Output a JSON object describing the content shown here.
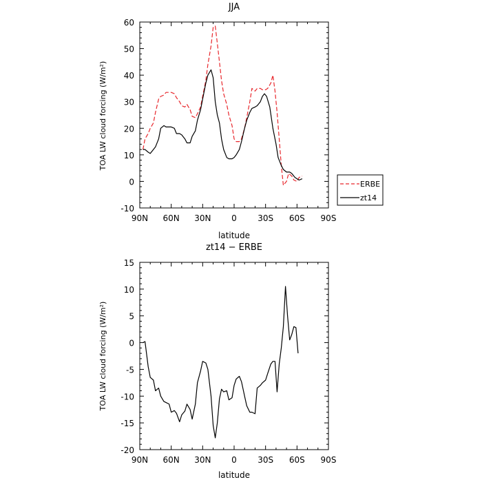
{
  "chart_data": [
    {
      "type": "line",
      "title": "JJA",
      "xlabel": "latitude",
      "ylabel": "TOA LW cloud forcing (W/m²)",
      "xlim": [
        90,
        -90
      ],
      "ylim": [
        -10,
        60
      ],
      "xticks": [
        {
          "v": 90,
          "label": "90N"
        },
        {
          "v": 60,
          "label": "60N"
        },
        {
          "v": 30,
          "label": "30N"
        },
        {
          "v": 0,
          "label": "0"
        },
        {
          "v": -30,
          "label": "30S"
        },
        {
          "v": -60,
          "label": "60S"
        },
        {
          "v": -90,
          "label": "90S"
        }
      ],
      "yticks": [
        -10,
        0,
        10,
        20,
        30,
        40,
        50,
        60
      ],
      "legend": "right",
      "series": [
        {
          "name": "ERBE",
          "color": "#e8262b",
          "dash": true,
          "points": [
            [
              87,
              12
            ],
            [
              85,
              16
            ],
            [
              82,
              18
            ],
            [
              80,
              20
            ],
            [
              77,
              22
            ],
            [
              75,
              26
            ],
            [
              72,
              31
            ],
            [
              70,
              32
            ],
            [
              67,
              32.5
            ],
            [
              65,
              33.5
            ],
            [
              62,
              33.5
            ],
            [
              60,
              33.5
            ],
            [
              57,
              33
            ],
            [
              55,
              31.5
            ],
            [
              52,
              30
            ],
            [
              50,
              28.5
            ],
            [
              47,
              28
            ],
            [
              45,
              29
            ],
            [
              42,
              27
            ],
            [
              40,
              24.5
            ],
            [
              37,
              24
            ],
            [
              35,
              25.5
            ],
            [
              32,
              28
            ],
            [
              30,
              32
            ],
            [
              27,
              38
            ],
            [
              25,
              44
            ],
            [
              22,
              51
            ],
            [
              20,
              58
            ],
            [
              18,
              58.5
            ],
            [
              16,
              52
            ],
            [
              14,
              45
            ],
            [
              12,
              38
            ],
            [
              10,
              33
            ],
            [
              7,
              29
            ],
            [
              5,
              25
            ],
            [
              2,
              21
            ],
            [
              0,
              16
            ],
            [
              -2,
              15
            ],
            [
              -5,
              15
            ],
            [
              -7,
              16
            ],
            [
              -10,
              20
            ],
            [
              -12,
              24
            ],
            [
              -15,
              30
            ],
            [
              -17,
              35
            ],
            [
              -20,
              34
            ],
            [
              -22,
              35
            ],
            [
              -25,
              35
            ],
            [
              -27,
              34.5
            ],
            [
              -30,
              34.5
            ],
            [
              -32,
              35
            ],
            [
              -35,
              37
            ],
            [
              -37,
              40
            ],
            [
              -39,
              34
            ],
            [
              -41,
              26
            ],
            [
              -43,
              16
            ],
            [
              -45,
              6
            ],
            [
              -47,
              -1.5
            ],
            [
              -50,
              0
            ],
            [
              -52,
              3
            ],
            [
              -55,
              2
            ],
            [
              -57,
              0.5
            ],
            [
              -60,
              0
            ],
            [
              -62,
              1.5
            ],
            [
              -65,
              2
            ]
          ]
        },
        {
          "name": "zt14",
          "color": "#000000",
          "dash": false,
          "points": [
            [
              87,
              12
            ],
            [
              85,
              12
            ],
            [
              82,
              11
            ],
            [
              80,
              10.5
            ],
            [
              77,
              12
            ],
            [
              75,
              13
            ],
            [
              72,
              16
            ],
            [
              70,
              20
            ],
            [
              67,
              21
            ],
            [
              65,
              20.5
            ],
            [
              62,
              20.5
            ],
            [
              60,
              20.5
            ],
            [
              57,
              20
            ],
            [
              55,
              18
            ],
            [
              52,
              18
            ],
            [
              50,
              17.5
            ],
            [
              47,
              16
            ],
            [
              45,
              14.5
            ],
            [
              42,
              14.5
            ],
            [
              40,
              17
            ],
            [
              37,
              19
            ],
            [
              35,
              23
            ],
            [
              32,
              27
            ],
            [
              30,
              31
            ],
            [
              27,
              37
            ],
            [
              25,
              40
            ],
            [
              22,
              42
            ],
            [
              20,
              39
            ],
            [
              18,
              30
            ],
            [
              16,
              25
            ],
            [
              14,
              22
            ],
            [
              12,
              16
            ],
            [
              10,
              12
            ],
            [
              7,
              9
            ],
            [
              5,
              8.5
            ],
            [
              2,
              8.5
            ],
            [
              0,
              9
            ],
            [
              -2,
              10
            ],
            [
              -5,
              12
            ],
            [
              -7,
              15
            ],
            [
              -10,
              20
            ],
            [
              -12,
              23
            ],
            [
              -15,
              26
            ],
            [
              -17,
              27.5
            ],
            [
              -20,
              28
            ],
            [
              -22,
              28.5
            ],
            [
              -25,
              30
            ],
            [
              -27,
              32
            ],
            [
              -29,
              33
            ],
            [
              -31,
              32
            ],
            [
              -34,
              28
            ],
            [
              -37,
              20
            ],
            [
              -40,
              14
            ],
            [
              -42,
              9
            ],
            [
              -45,
              6
            ],
            [
              -47,
              4.5
            ],
            [
              -50,
              3.5
            ],
            [
              -53,
              3.5
            ],
            [
              -55,
              3
            ],
            [
              -58,
              1.5
            ],
            [
              -60,
              1
            ],
            [
              -62,
              0.5
            ],
            [
              -65,
              1
            ]
          ]
        }
      ]
    },
    {
      "type": "line",
      "title": "zt14 − ERBE",
      "xlabel": "latitude",
      "ylabel": "TOA LW cloud forcing (W/m²)",
      "xlim": [
        90,
        -90
      ],
      "ylim": [
        -20,
        15
      ],
      "xticks": [
        {
          "v": 90,
          "label": "90N"
        },
        {
          "v": 60,
          "label": "60N"
        },
        {
          "v": 30,
          "label": "30N"
        },
        {
          "v": 0,
          "label": "0"
        },
        {
          "v": -30,
          "label": "30S"
        },
        {
          "v": -60,
          "label": "60S"
        },
        {
          "v": -90,
          "label": "90S"
        }
      ],
      "yticks": [
        -20,
        -15,
        -10,
        -5,
        0,
        5,
        10,
        15
      ],
      "series": [
        {
          "color": "#000000",
          "dash": false,
          "points": [
            [
              87,
              0
            ],
            [
              85,
              0.2
            ],
            [
              82,
              -4.5
            ],
            [
              80,
              -6.5
            ],
            [
              77,
              -7
            ],
            [
              75,
              -9
            ],
            [
              72,
              -8.5
            ],
            [
              70,
              -10
            ],
            [
              67,
              -11
            ],
            [
              65,
              -11.2
            ],
            [
              62,
              -11.5
            ],
            [
              60,
              -13
            ],
            [
              57,
              -12.7
            ],
            [
              55,
              -13.2
            ],
            [
              52,
              -14.8
            ],
            [
              50,
              -13.5
            ],
            [
              47,
              -12.8
            ],
            [
              45,
              -11.5
            ],
            [
              42,
              -12.5
            ],
            [
              40,
              -14.3
            ],
            [
              37,
              -11.5
            ],
            [
              35,
              -7.5
            ],
            [
              32,
              -5.3
            ],
            [
              30,
              -3.5
            ],
            [
              27,
              -3.8
            ],
            [
              25,
              -5
            ],
            [
              22,
              -10
            ],
            [
              20,
              -15.5
            ],
            [
              18,
              -17.8
            ],
            [
              16,
              -15
            ],
            [
              14,
              -10.5
            ],
            [
              12,
              -8.7
            ],
            [
              10,
              -9.2
            ],
            [
              7,
              -9
            ],
            [
              5,
              -10.7
            ],
            [
              2,
              -10.3
            ],
            [
              0,
              -8
            ],
            [
              -2,
              -6.8
            ],
            [
              -5,
              -6.3
            ],
            [
              -7,
              -7.3
            ],
            [
              -10,
              -10
            ],
            [
              -12,
              -11.8
            ],
            [
              -15,
              -13
            ],
            [
              -17,
              -13
            ],
            [
              -20,
              -13.3
            ],
            [
              -22,
              -8.5
            ],
            [
              -25,
              -8
            ],
            [
              -27,
              -7.5
            ],
            [
              -30,
              -7
            ],
            [
              -32,
              -5.8
            ],
            [
              -35,
              -4
            ],
            [
              -37,
              -3.5
            ],
            [
              -39,
              -3.5
            ],
            [
              -41,
              -9.2
            ],
            [
              -43,
              -4
            ],
            [
              -45,
              -1
            ],
            [
              -47,
              3
            ],
            [
              -49,
              10.5
            ],
            [
              -51,
              5
            ],
            [
              -53,
              0.5
            ],
            [
              -55,
              1.5
            ],
            [
              -57,
              3
            ],
            [
              -59,
              2.8
            ],
            [
              -61,
              -2
            ]
          ]
        }
      ]
    }
  ]
}
